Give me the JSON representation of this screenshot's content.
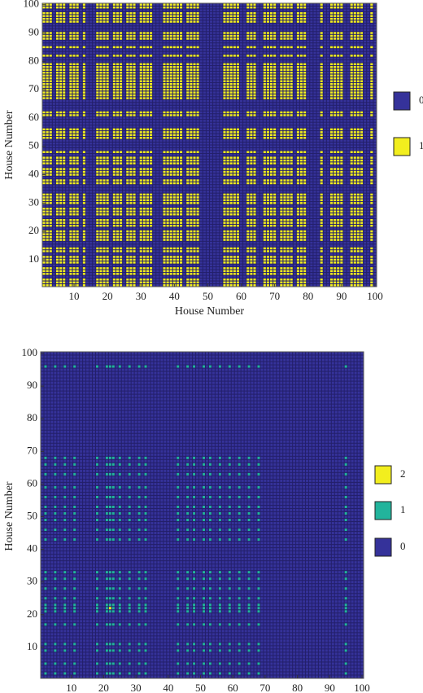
{
  "chart_data": [
    {
      "type": "heatmap",
      "xlabel": "House Number",
      "ylabel": "House Number",
      "xlim": [
        0.5,
        100.5
      ],
      "ylim": [
        0.5,
        100.5
      ],
      "xticks": [
        10,
        20,
        30,
        40,
        50,
        60,
        70,
        80,
        90,
        100
      ],
      "yticks": [
        10,
        20,
        30,
        40,
        50,
        60,
        70,
        80,
        90,
        100
      ],
      "levels": [
        0,
        1
      ],
      "colors": [
        "#35329a",
        "#f2ee1e"
      ],
      "xvalues": [
        1,
        1,
        1,
        0,
        1,
        1,
        1,
        0,
        1,
        1,
        1,
        0,
        1,
        0,
        0,
        0,
        1,
        1,
        1,
        1,
        0,
        1,
        1,
        1,
        0,
        1,
        1,
        1,
        0,
        1,
        1,
        1,
        1,
        0,
        0,
        0,
        1,
        1,
        1,
        1,
        1,
        1,
        0,
        1,
        1,
        1,
        1,
        0,
        0,
        0,
        0,
        0,
        0,
        0,
        1,
        1,
        1,
        1,
        1,
        0,
        0,
        1,
        1,
        1,
        0,
        0,
        1,
        1,
        1,
        1,
        0,
        1,
        1,
        1,
        1,
        0,
        1,
        1,
        1,
        0,
        0,
        0,
        0,
        1,
        0,
        0,
        1,
        1,
        1,
        1,
        0,
        0,
        1,
        1,
        1,
        1,
        0,
        0,
        1,
        0
      ],
      "yvalues": [
        1,
        1,
        1,
        0,
        1,
        1,
        1,
        0,
        1,
        1,
        1,
        0,
        1,
        1,
        0,
        0,
        1,
        1,
        1,
        1,
        0,
        1,
        1,
        1,
        0,
        1,
        1,
        1,
        0,
        1,
        1,
        1,
        1,
        0,
        0,
        0,
        1,
        1,
        0,
        1,
        1,
        1,
        0,
        1,
        1,
        1,
        0,
        1,
        0,
        0,
        0,
        0,
        1,
        1,
        1,
        1,
        0,
        0,
        0,
        0,
        1,
        1,
        0,
        0,
        0,
        0,
        1,
        1,
        1,
        1,
        1,
        1,
        1,
        1,
        1,
        1,
        1,
        1,
        1,
        0,
        0,
        1,
        0,
        0,
        1,
        0,
        0,
        1,
        1,
        1,
        0,
        0,
        0,
        1,
        1,
        1,
        1,
        0,
        1,
        1
      ]
    },
    {
      "type": "heatmap",
      "xlabel": "House Number",
      "ylabel": "House Number",
      "xlim": [
        0.5,
        100.5
      ],
      "ylim": [
        0.5,
        100.5
      ],
      "xticks": [
        10,
        20,
        30,
        40,
        50,
        60,
        70,
        80,
        90,
        100
      ],
      "yticks": [
        10,
        20,
        30,
        40,
        50,
        60,
        70,
        80,
        90,
        100
      ],
      "levels": [
        2,
        1,
        0
      ],
      "colors": [
        "#f2ee1e",
        "#22b49c",
        "#35329a"
      ],
      "xvalues": [
        0,
        1,
        0,
        0,
        1,
        0,
        0,
        1,
        0,
        0,
        1,
        0,
        0,
        0,
        0,
        0,
        0,
        1,
        0,
        0,
        1,
        2,
        1,
        0,
        1,
        0,
        0,
        1,
        0,
        0,
        1,
        0,
        1,
        0,
        0,
        0,
        0,
        0,
        0,
        0,
        0,
        0,
        1,
        0,
        0,
        1,
        0,
        1,
        0,
        0,
        1,
        0,
        1,
        0,
        0,
        1,
        0,
        0,
        1,
        0,
        0,
        1,
        0,
        0,
        1,
        0,
        0,
        1,
        0,
        0,
        0,
        0,
        0,
        0,
        0,
        0,
        0,
        0,
        0,
        0,
        0,
        0,
        0,
        0,
        0,
        0,
        0,
        0,
        0,
        0,
        0,
        0,
        0,
        0,
        1,
        0,
        0,
        0,
        0,
        0
      ],
      "yvalues": [
        0,
        1,
        0,
        0,
        1,
        0,
        0,
        0,
        1,
        0,
        1,
        0,
        0,
        0,
        0,
        0,
        1,
        0,
        0,
        0,
        1,
        2,
        1,
        0,
        1,
        0,
        0,
        1,
        0,
        0,
        1,
        0,
        1,
        0,
        0,
        0,
        0,
        0,
        0,
        0,
        0,
        0,
        1,
        0,
        0,
        1,
        0,
        0,
        1,
        0,
        1,
        0,
        1,
        0,
        0,
        1,
        0,
        0,
        1,
        0,
        0,
        0,
        1,
        0,
        0,
        1,
        0,
        1,
        0,
        0,
        0,
        0,
        0,
        0,
        0,
        0,
        0,
        0,
        0,
        0,
        0,
        0,
        0,
        0,
        0,
        0,
        0,
        0,
        0,
        0,
        0,
        0,
        0,
        0,
        0,
        1,
        0,
        0,
        0,
        0
      ]
    }
  ]
}
